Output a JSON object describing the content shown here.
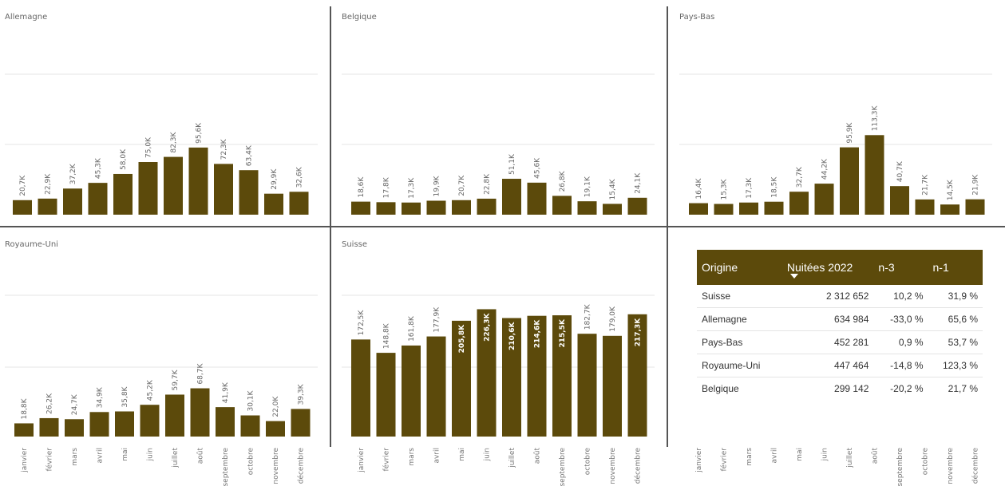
{
  "months": [
    "janvier",
    "février",
    "mars",
    "avril",
    "mai",
    "juin",
    "juillet",
    "août",
    "septembre",
    "octobre",
    "novembre",
    "décembre"
  ],
  "colors": {
    "bar": "#5c4a0b",
    "header_bg": "#5c4a0b",
    "header_text": "#ffffff"
  },
  "chart_data": [
    {
      "type": "bar",
      "title": "Allemagne",
      "categories": [
        "janvier",
        "février",
        "mars",
        "avril",
        "mai",
        "juin",
        "juillet",
        "août",
        "septembre",
        "octobre",
        "novembre",
        "décembre"
      ],
      "values": [
        20.7,
        22.9,
        37.2,
        45.3,
        58.0,
        75.0,
        82.3,
        95.6,
        72.3,
        63.4,
        29.9,
        32.6
      ],
      "labels": [
        "20,7K",
        "22,9K",
        "37,2K",
        "45,3K",
        "58,0K",
        "75,0K",
        "82,3K",
        "95,6K",
        "72,3K",
        "63,4K",
        "29,9K",
        "32,6K"
      ],
      "unit": "K",
      "grid": true
    },
    {
      "type": "bar",
      "title": "Belgique",
      "categories": [
        "janvier",
        "février",
        "mars",
        "avril",
        "mai",
        "juin",
        "juillet",
        "août",
        "septembre",
        "octobre",
        "novembre",
        "décembre"
      ],
      "values": [
        18.6,
        17.8,
        17.3,
        19.9,
        20.7,
        22.8,
        51.1,
        45.6,
        26.8,
        19.1,
        15.4,
        24.1
      ],
      "labels": [
        "18,6K",
        "17,8K",
        "17,3K",
        "19,9K",
        "20,7K",
        "22,8K",
        "51,1K",
        "45,6K",
        "26,8K",
        "19,1K",
        "15,4K",
        "24,1K"
      ],
      "unit": "K",
      "grid": true
    },
    {
      "type": "bar",
      "title": "Pays-Bas",
      "categories": [
        "janvier",
        "février",
        "mars",
        "avril",
        "mai",
        "juin",
        "juillet",
        "août",
        "septembre",
        "octobre",
        "novembre",
        "décembre"
      ],
      "values": [
        16.4,
        15.3,
        17.3,
        18.5,
        32.7,
        44.2,
        95.9,
        113.3,
        40.7,
        21.7,
        14.5,
        21.9
      ],
      "labels": [
        "16,4K",
        "15,3K",
        "17,3K",
        "18,5K",
        "32,7K",
        "44,2K",
        "95,9K",
        "113,3K",
        "40,7K",
        "21,7K",
        "14,5K",
        "21,9K"
      ],
      "unit": "K",
      "grid": true
    },
    {
      "type": "bar",
      "title": "Royaume-Uni",
      "categories": [
        "janvier",
        "février",
        "mars",
        "avril",
        "mai",
        "juin",
        "juillet",
        "août",
        "septembre",
        "octobre",
        "novembre",
        "décembre"
      ],
      "values": [
        18.8,
        26.2,
        24.7,
        34.9,
        35.8,
        45.2,
        59.7,
        68.7,
        41.9,
        30.1,
        22.0,
        39.3
      ],
      "labels": [
        "18,8K",
        "26,2K",
        "24,7K",
        "34,9K",
        "35,8K",
        "45,2K",
        "59,7K",
        "68,7K",
        "41,9K",
        "30,1K",
        "22,0K",
        "39,3K"
      ],
      "unit": "K",
      "grid": true
    },
    {
      "type": "bar",
      "title": "Suisse",
      "categories": [
        "janvier",
        "février",
        "mars",
        "avril",
        "mai",
        "juin",
        "juillet",
        "août",
        "septembre",
        "octobre",
        "novembre",
        "décembre"
      ],
      "values": [
        172.5,
        148.8,
        161.8,
        177.9,
        205.8,
        226.3,
        210.6,
        214.6,
        215.5,
        182.7,
        179.0,
        217.3
      ],
      "labels": [
        "172,5K",
        "148,8K",
        "161,8K",
        "177,9K",
        "205,8K",
        "226,3K",
        "210,6K",
        "214,6K",
        "215,5K",
        "182,7K",
        "179,0K",
        "217,3K"
      ],
      "unit": "K",
      "grid": true
    },
    {
      "type": "table",
      "columns": [
        "Origine",
        "Nuitées 2022",
        "n-3",
        "n-1"
      ],
      "sorted_column": "Nuitées 2022",
      "rows": [
        [
          "Suisse",
          "2 312 652",
          "10,2 %",
          "31,9 %"
        ],
        [
          "Allemagne",
          "634 984",
          "-33,0 %",
          "65,6 %"
        ],
        [
          "Pays-Bas",
          "452 281",
          "0,9 %",
          "53,7 %"
        ],
        [
          "Royaume-Uni",
          "447 464",
          "-14,8 %",
          "123,3 %"
        ],
        [
          "Belgique",
          "299 142",
          "-20,2 %",
          "21,7 %"
        ]
      ]
    }
  ]
}
